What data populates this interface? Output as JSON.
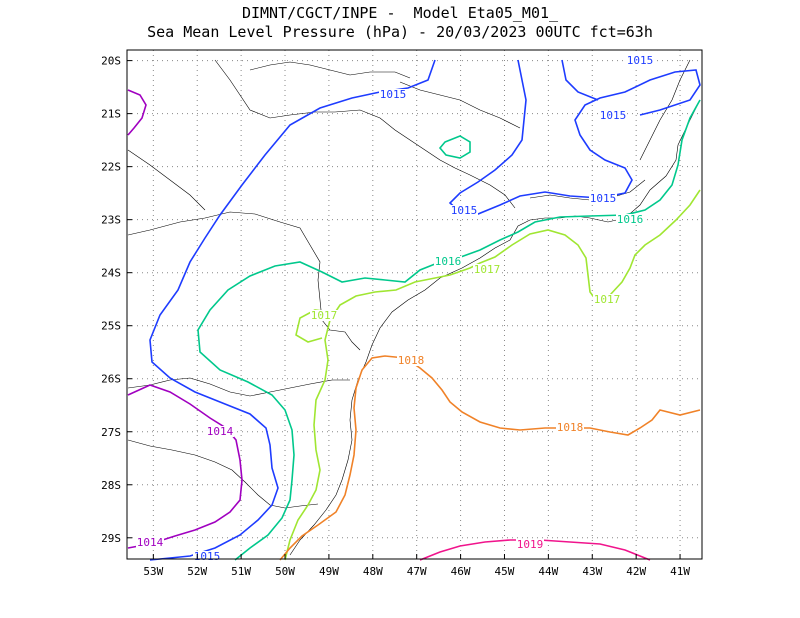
{
  "title": {
    "line1": "DIMNT/CGCT/INPE -  Model Eta05_M01_",
    "line2": "Sea Mean Level Pressure (hPa) - 20/03/2023 00UTC fct=63h"
  },
  "chart_data": {
    "type": "contour",
    "lat_ticks": [
      "20S",
      "21S",
      "22S",
      "23S",
      "24S",
      "25S",
      "26S",
      "27S",
      "28S",
      "29S"
    ],
    "lon_ticks": [
      "53W",
      "52W",
      "51W",
      "50W",
      "49W",
      "48W",
      "47W",
      "46W",
      "45W",
      "44W",
      "43W",
      "42W",
      "41W"
    ],
    "lon_range": [
      -53.6,
      -40.5
    ],
    "lat_range": [
      -29.4,
      -19.8
    ],
    "grid": true,
    "isobars": [
      {
        "value": 1014,
        "label": "1014",
        "color": "#a000c0"
      },
      {
        "value": 1015,
        "label": "1015",
        "color": "#1e3cff"
      },
      {
        "value": 1016,
        "label": "1016",
        "color": "#00c88c"
      },
      {
        "value": 1017,
        "label": "1017",
        "color": "#a0e632"
      },
      {
        "value": 1018,
        "label": "1018",
        "color": "#f08228"
      },
      {
        "value": 1019,
        "label": "1019",
        "color": "#f0148c"
      }
    ]
  }
}
